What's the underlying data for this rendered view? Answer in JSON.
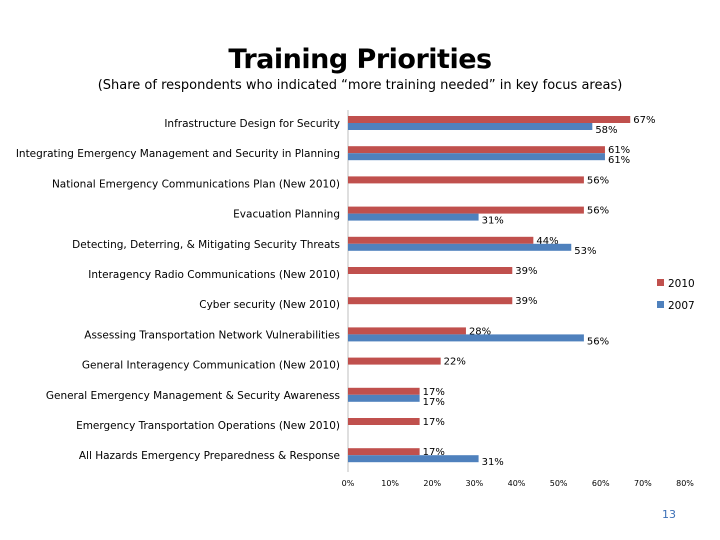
{
  "title": "Training Priorities",
  "subtitle": "(Share of respondents who indicated “more training needed” in key focus areas)",
  "page_number": "13",
  "colors": {
    "2010": "#c0504d",
    "2007": "#4f81bd"
  },
  "chart_data": {
    "type": "bar",
    "orientation": "horizontal",
    "categories": [
      "Infrastructure Design for Security",
      "Integrating Emergency Management and Security in Planning",
      "National Emergency Communications Plan (New 2010)",
      "Evacuation Planning",
      "Detecting, Deterring, & Mitigating Security Threats",
      "Interagency Radio Communications (New 2010)",
      "Cyber security (New 2010)",
      "Assessing Transportation Network Vulnerabilities",
      "General Interagency Communication (New 2010)",
      "General Emergency Management & Security Awareness",
      "Emergency Transportation Operations (New 2010)",
      "All Hazards Emergency Preparedness & Response"
    ],
    "series": [
      {
        "name": "2010",
        "values": [
          67,
          61,
          56,
          56,
          44,
          39,
          39,
          28,
          22,
          17,
          17,
          17
        ]
      },
      {
        "name": "2007",
        "values": [
          58,
          61,
          null,
          31,
          53,
          null,
          null,
          56,
          null,
          17,
          null,
          31
        ]
      }
    ],
    "value_labels": {
      "2010": [
        "67%",
        "61%",
        "56%",
        "56%",
        "44%",
        "39%",
        "39%",
        "28%",
        "22%",
        "17%",
        "17%",
        "17%"
      ],
      "2007": [
        "58%",
        "61%",
        "",
        "31%",
        "53%",
        "",
        "",
        "56%",
        "",
        "17%",
        "",
        "31%"
      ]
    },
    "xlim": [
      0,
      80
    ],
    "xticks": [
      "0%",
      "10%",
      "20%",
      "30%",
      "40%",
      "50%",
      "60%",
      "70%",
      "80%"
    ],
    "legend": [
      "2010",
      "2007"
    ],
    "legend_position": "right",
    "grid": false
  }
}
